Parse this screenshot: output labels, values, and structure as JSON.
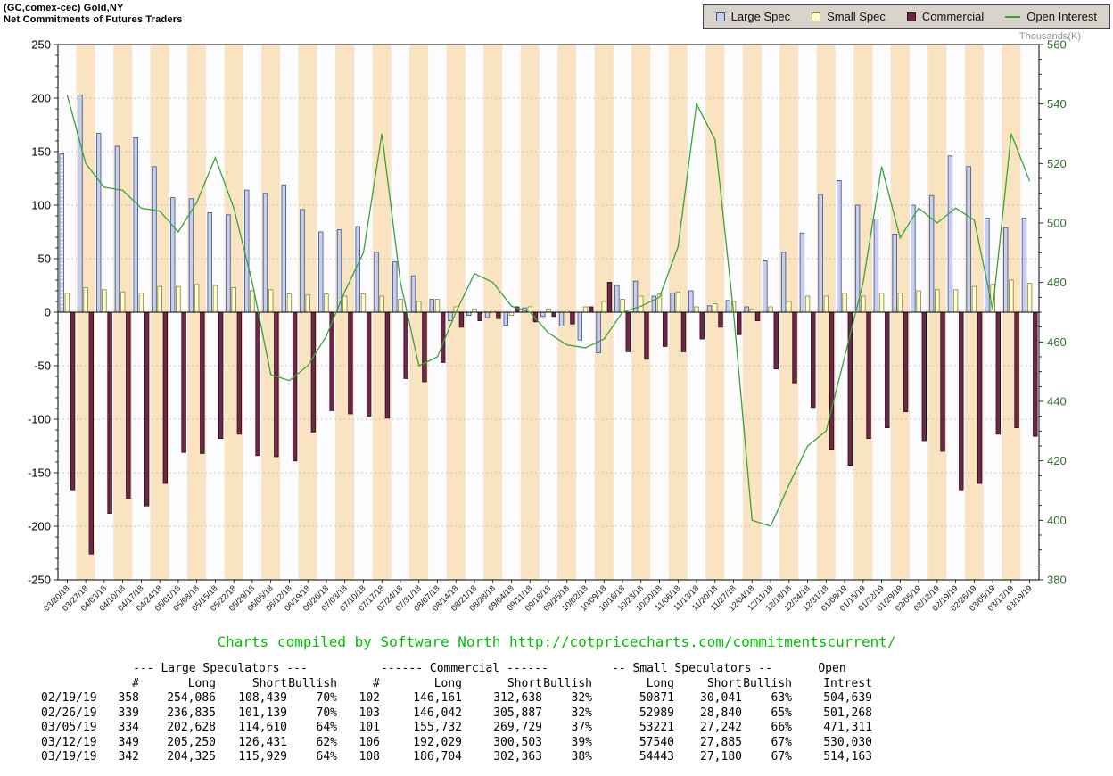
{
  "header": {
    "title_line1": "(GC,comex-cec) Gold,NY",
    "title_line2": "Net Commitments of Futures Traders"
  },
  "legend": {
    "items": [
      {
        "label": "Large Spec",
        "type": "box",
        "color": "#c7d0ea",
        "border": "#3c4a86"
      },
      {
        "label": "Small Spec",
        "type": "box",
        "color": "#ffffd2",
        "border": "#83832f"
      },
      {
        "label": "Commercial",
        "type": "box",
        "color": "#702747",
        "border": "#23101c"
      },
      {
        "label": "Open Interest",
        "type": "line",
        "color": "#3aa23a"
      }
    ]
  },
  "chart_data": {
    "type": "bar",
    "title": "Net Commitments of Futures Traders - (GC,comex-cec) Gold,NY",
    "right_axis_label": "Thousands(K)",
    "left_axis": {
      "min": -250,
      "max": 250,
      "tick_step": 50
    },
    "right_axis": {
      "min": 380,
      "max": 560,
      "tick_step": 20
    },
    "grid": true,
    "legend_position": "top-right",
    "stripe_colors": [
      "#fcfcfe",
      "#fae3c1"
    ],
    "categories": [
      "03/20/18",
      "03/27/18",
      "04/03/18",
      "04/10/18",
      "04/17/18",
      "04/24/18",
      "05/01/18",
      "05/08/18",
      "05/15/18",
      "05/22/18",
      "05/29/18",
      "06/05/18",
      "06/12/18",
      "06/19/18",
      "06/26/18",
      "07/03/18",
      "07/10/18",
      "07/17/18",
      "07/24/18",
      "07/31/18",
      "08/07/18",
      "08/14/18",
      "08/21/18",
      "08/28/18",
      "09/04/18",
      "09/11/18",
      "09/18/18",
      "09/25/18",
      "10/02/18",
      "10/09/18",
      "10/16/18",
      "10/23/18",
      "10/30/18",
      "11/06/18",
      "11/13/18",
      "11/20/18",
      "11/27/18",
      "12/04/18",
      "12/11/18",
      "12/18/18",
      "12/24/18",
      "12/31/18",
      "01/08/19",
      "01/15/19",
      "01/22/19",
      "01/29/19",
      "02/05/19",
      "02/12/19",
      "02/19/19",
      "02/26/19",
      "03/05/19",
      "03/12/19",
      "03/19/19"
    ],
    "series": [
      {
        "name": "Large Spec",
        "type": "bar",
        "axis": "left",
        "color": "#c7d0ea",
        "border": "#3c4a86",
        "values": [
          148,
          203,
          167,
          155,
          163,
          136,
          107,
          106,
          93,
          91,
          114,
          111,
          119,
          96,
          75,
          77,
          80,
          56,
          47,
          34,
          12,
          -8,
          -3,
          -5,
          -12,
          4,
          -4,
          -13,
          -26,
          -38,
          25,
          29,
          15,
          18,
          20,
          6,
          11,
          5,
          48,
          56,
          74,
          110,
          123,
          100,
          87,
          73,
          100,
          109,
          146,
          136,
          88,
          79,
          88
        ]
      },
      {
        "name": "Small Spec",
        "type": "bar",
        "axis": "left",
        "color": "#ffffd2",
        "border": "#83832f",
        "values": [
          18,
          23,
          21,
          19,
          18,
          24,
          24,
          26,
          25,
          23,
          20,
          21,
          17,
          16,
          17,
          15,
          17,
          15,
          12,
          10,
          12,
          5,
          3,
          2,
          -3,
          5,
          3,
          2,
          5,
          10,
          12,
          15,
          17,
          19,
          5,
          8,
          10,
          3,
          5,
          10,
          15,
          15,
          18,
          15,
          18,
          18,
          20,
          21,
          21,
          24,
          26,
          30,
          27
        ]
      },
      {
        "name": "Commercial",
        "type": "bar",
        "axis": "left",
        "color": "#702747",
        "border": "#23101c",
        "values": [
          -166,
          -226,
          -188,
          -174,
          -181,
          -160,
          -131,
          -132,
          -118,
          -114,
          -134,
          -135,
          -139,
          -112,
          -92,
          -95,
          -97,
          -99,
          -62,
          -65,
          -47,
          -14,
          -8,
          -6,
          5,
          -9,
          -4,
          -11,
          5,
          28,
          -37,
          -44,
          -32,
          -37,
          -25,
          -14,
          -21,
          -8,
          -53,
          -66,
          -89,
          -128,
          -143,
          -118,
          -108,
          -93,
          -120,
          -130,
          -166,
          -160,
          -114,
          -108,
          -116
        ]
      },
      {
        "name": "Open Interest",
        "type": "line",
        "axis": "right",
        "color": "#3aa23a",
        "values": [
          543,
          520,
          512,
          511,
          505,
          504,
          497,
          507,
          522,
          505,
          480,
          449,
          447,
          452,
          462,
          477,
          490,
          530,
          480,
          452,
          455,
          470,
          483,
          480,
          472,
          470,
          463,
          459,
          458,
          461,
          470,
          472,
          475,
          492,
          540,
          528,
          470,
          400,
          398,
          412,
          425,
          430,
          455,
          480,
          519,
          495,
          505,
          500,
          505,
          501,
          471,
          530,
          514
        ]
      }
    ]
  },
  "footer": {
    "credit": "Charts compiled by Software North  http://cotpricecharts.com/commitmentscurrent/"
  },
  "table": {
    "group_headers": [
      {
        "label": "",
        "span": 1
      },
      {
        "label": "--- Large Speculators ---",
        "span": 4
      },
      {
        "label": "------ Commercial ------",
        "span": 4
      },
      {
        "label": "-- Small Speculators --",
        "span": 3
      },
      {
        "label": "Open",
        "span": 1
      }
    ],
    "columns": [
      "",
      "#",
      "Long",
      "Short",
      "Bullish",
      "#",
      "Long",
      "Short",
      "Bullish",
      "Long",
      "Short",
      "Bullish",
      "Intrest"
    ],
    "rows": [
      [
        "02/19/19",
        "358",
        "254,086",
        "108,439",
        "70%",
        "102",
        "146,161",
        "312,638",
        "32%",
        "50871",
        "30,041",
        "63%",
        "504,639"
      ],
      [
        "02/26/19",
        "339",
        "236,835",
        "101,139",
        "70%",
        "103",
        "146,042",
        "305,887",
        "32%",
        "52989",
        "28,840",
        "65%",
        "501,268"
      ],
      [
        "03/05/19",
        "334",
        "202,628",
        "114,610",
        "64%",
        "101",
        "155,732",
        "269,729",
        "37%",
        "53221",
        "27,242",
        "66%",
        "471,311"
      ],
      [
        "03/12/19",
        "349",
        "205,250",
        "126,431",
        "62%",
        "106",
        "192,029",
        "300,503",
        "39%",
        "57540",
        "27,885",
        "67%",
        "530,030"
      ],
      [
        "03/19/19",
        "342",
        "204,325",
        "115,929",
        "64%",
        "108",
        "186,704",
        "302,363",
        "38%",
        "54443",
        "27,180",
        "67%",
        "514,163"
      ]
    ]
  }
}
